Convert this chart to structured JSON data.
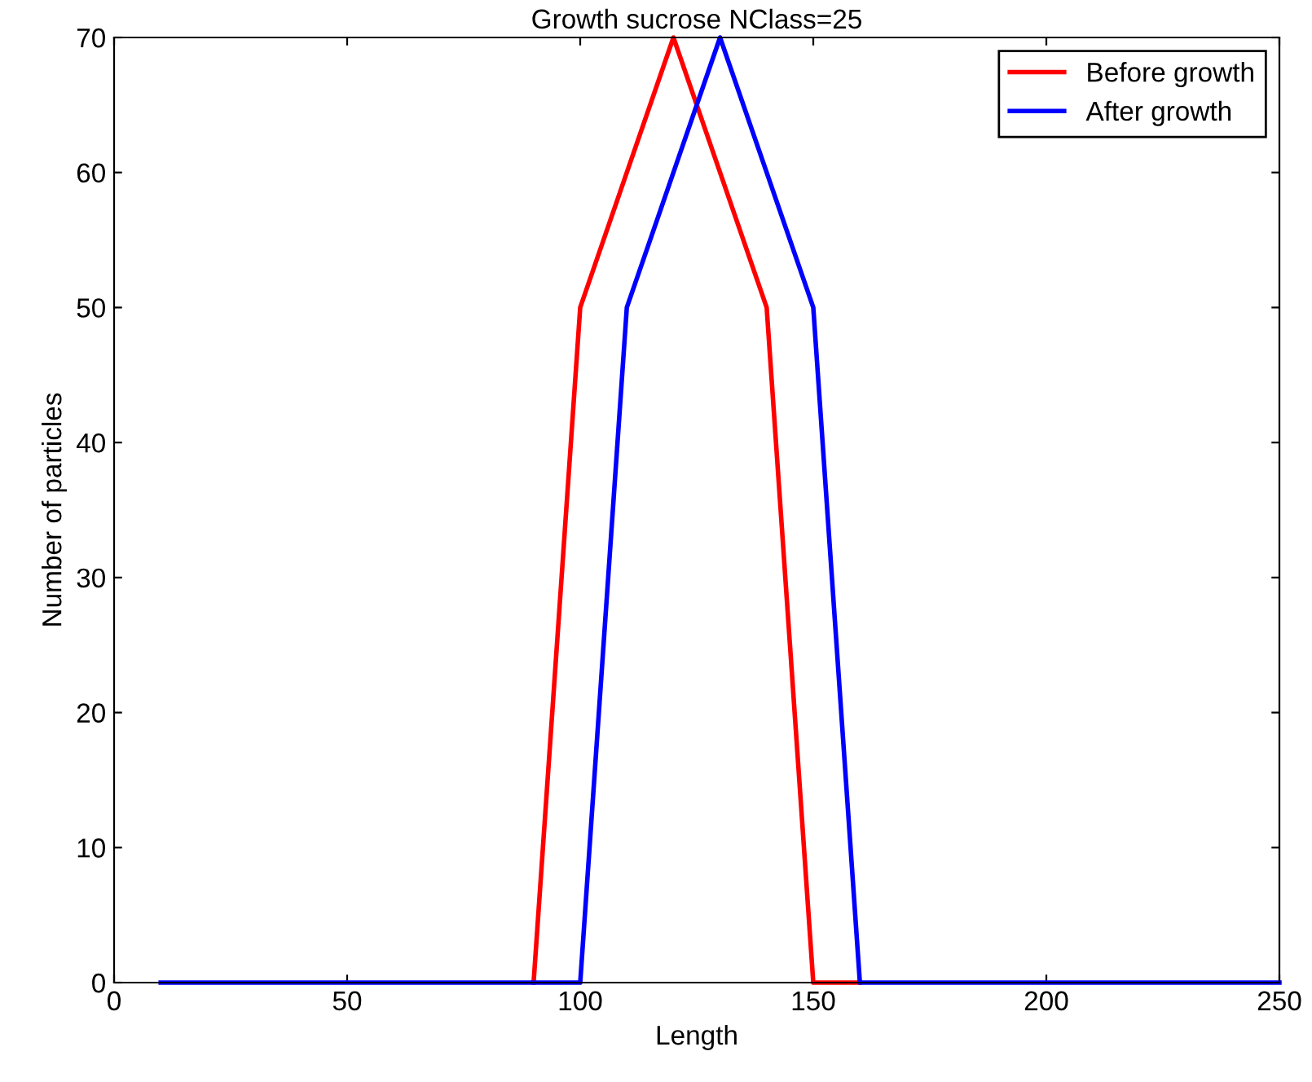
{
  "chart_data": {
    "type": "line",
    "title": "Growth sucrose NClass=25",
    "xlabel": "Length",
    "ylabel": "Number of particles",
    "x": [
      10,
      20,
      30,
      40,
      50,
      60,
      70,
      80,
      90,
      100,
      110,
      120,
      130,
      140,
      150,
      160,
      170,
      180,
      190,
      200,
      210,
      220,
      230,
      240,
      250
    ],
    "series": [
      {
        "name": "Before growth",
        "color": "#ff0000",
        "values": [
          null,
          null,
          null,
          null,
          null,
          null,
          null,
          null,
          0,
          50,
          60,
          70,
          60,
          50,
          0,
          0,
          null,
          null,
          null,
          null,
          null,
          null,
          null,
          null,
          null
        ]
      },
      {
        "name": "After growth",
        "color": "#0000ff",
        "values": [
          0,
          0,
          0,
          0,
          0,
          0,
          0,
          0,
          0,
          0,
          50,
          60,
          70,
          60,
          50,
          0,
          0,
          0,
          0,
          0,
          0,
          0,
          0,
          0,
          0
        ]
      }
    ],
    "xlim": [
      0,
      250
    ],
    "xticks": [
      0,
      50,
      100,
      150,
      200,
      250
    ],
    "ylim": [
      0,
      70
    ],
    "yticks": [
      0,
      10,
      20,
      30,
      40,
      50,
      60,
      70
    ],
    "grid": false,
    "legend": "top right",
    "marker": "none",
    "line_style": "solid"
  }
}
